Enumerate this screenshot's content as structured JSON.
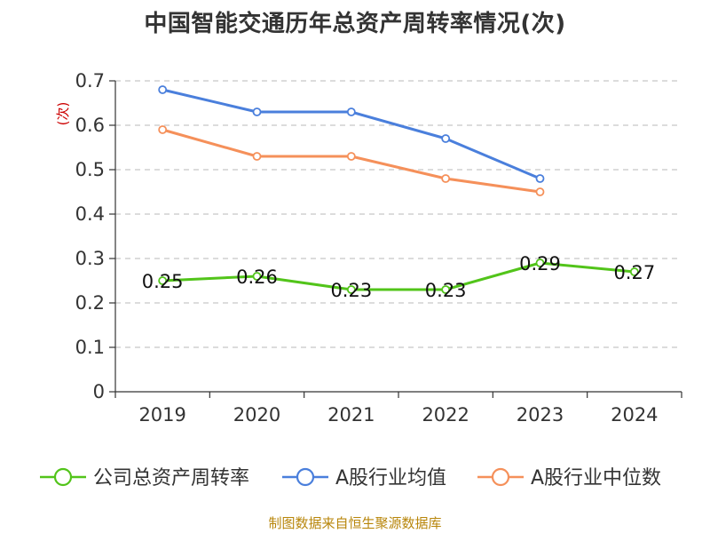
{
  "title": "中国智能交通历年总资产周转率情况(次)",
  "source": "制图数据来自恒生聚源数据库",
  "chart_data": {
    "type": "line",
    "title": "中国智能交通历年总资产周转率情况(次)",
    "ylabel": "(次)",
    "xlabel": "",
    "categories": [
      "2019",
      "2020",
      "2021",
      "2022",
      "2023",
      "2024"
    ],
    "ylim": [
      0,
      0.7
    ],
    "yticks": [
      0,
      0.1,
      0.2,
      0.3,
      0.4,
      0.5,
      0.6,
      0.7
    ],
    "grid": true,
    "legend_position": "bottom",
    "series": [
      {
        "name": "公司总资产周转率",
        "color": "#52c41a",
        "values": [
          0.25,
          0.26,
          0.23,
          0.23,
          0.29,
          0.27
        ],
        "labels": [
          "0.25",
          "0.26",
          "0.23",
          "0.23",
          "0.29",
          "0.27"
        ],
        "show_labels": true
      },
      {
        "name": "A股行业均值",
        "color": "#4a7fdc",
        "values": [
          0.68,
          0.63,
          0.63,
          0.57,
          0.48,
          null
        ],
        "show_labels": false
      },
      {
        "name": "A股行业中位数",
        "color": "#f5905a",
        "values": [
          0.59,
          0.53,
          0.53,
          0.48,
          0.45,
          null
        ],
        "show_labels": false
      }
    ]
  }
}
